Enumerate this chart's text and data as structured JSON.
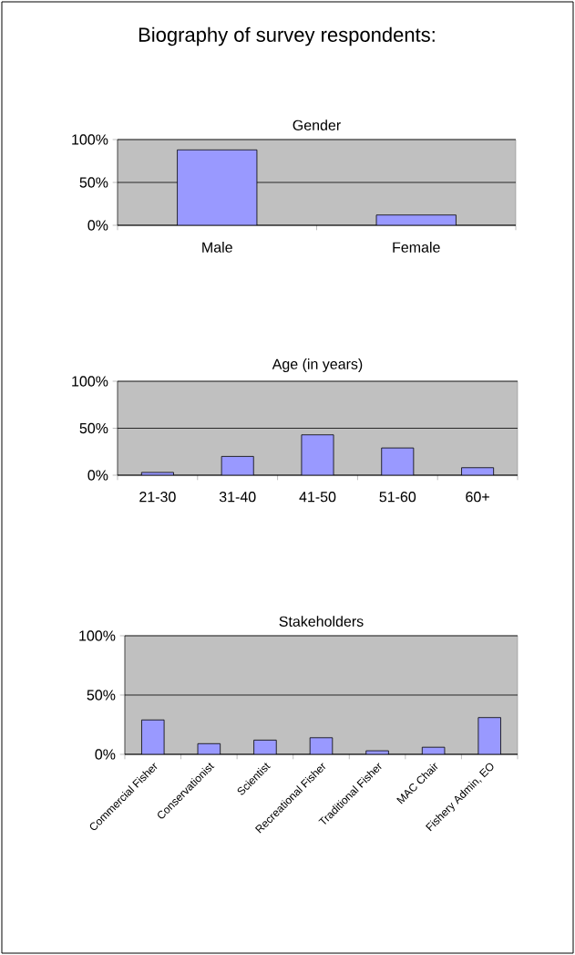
{
  "chart_data": [
    {
      "type": "bar",
      "title": "Gender",
      "categories": [
        "Male",
        "Female"
      ],
      "values": [
        88,
        12
      ],
      "color": "#9999ff",
      "ylim": [
        0,
        100
      ],
      "yticks": [
        {
          "value": 0,
          "label": "0%"
        },
        {
          "value": 50,
          "label": "50%"
        },
        {
          "value": 100,
          "label": "100%"
        }
      ],
      "grid": "y",
      "annotations": [
        "Biography of survey respondents:"
      ]
    },
    {
      "type": "bar",
      "title": "Age (in years)",
      "categories": [
        "21-30",
        "31-40",
        "41-50",
        "51-60",
        "60+"
      ],
      "values": [
        3,
        20,
        43,
        29,
        8
      ],
      "color": "#9999ff",
      "ylim": [
        0,
        100
      ],
      "yticks": [
        {
          "value": 0,
          "label": "0%"
        },
        {
          "value": 50,
          "label": "50%"
        },
        {
          "value": 100,
          "label": "100%"
        }
      ],
      "grid": "y"
    },
    {
      "type": "bar",
      "title": "Stakeholders",
      "categories": [
        "Commercial Fisher",
        "Conservationist",
        "Scientist",
        "Recreational Fisher",
        "Traditional Fisher",
        "MAC Chair",
        "Fishery Admin, EO"
      ],
      "values": [
        29,
        9,
        12,
        14,
        3,
        6,
        31
      ],
      "color": "#9999ff",
      "ylim": [
        0,
        100
      ],
      "yticks": [
        {
          "value": 0,
          "label": "0%"
        },
        {
          "value": 50,
          "label": "50%"
        },
        {
          "value": 100,
          "label": "100%"
        }
      ],
      "grid": "y"
    }
  ]
}
